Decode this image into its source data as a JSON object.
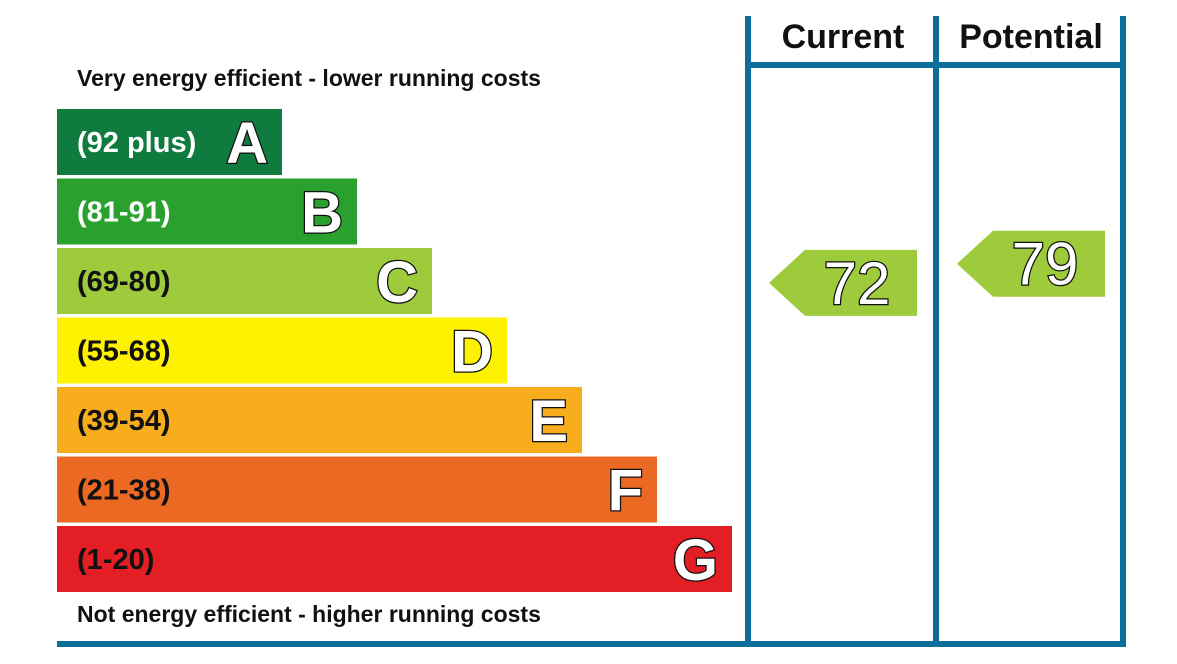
{
  "header": {
    "current_label": "Current",
    "potential_label": "Potential"
  },
  "captions": {
    "top": "Very energy efficient - lower running costs",
    "bottom": "Not energy efficient - higher running costs"
  },
  "colors": {
    "frame": "#0d6e99"
  },
  "chart_data": {
    "type": "bar",
    "bands": [
      {
        "letter": "A",
        "range": "(92 plus)",
        "color": "#0f7b3e",
        "text_color": "#ffffff"
      },
      {
        "letter": "B",
        "range": "(81-91)",
        "color": "#2aa12f",
        "text_color": "#ffffff"
      },
      {
        "letter": "C",
        "range": "(69-80)",
        "color": "#9dcb3c",
        "text_color": "#111111"
      },
      {
        "letter": "D",
        "range": "(55-68)",
        "color": "#fff200",
        "text_color": "#111111"
      },
      {
        "letter": "E",
        "range": "(39-54)",
        "color": "#f8ad1d",
        "text_color": "#111111"
      },
      {
        "letter": "F",
        "range": "(21-38)",
        "color": "#ec6924",
        "text_color": "#111111"
      },
      {
        "letter": "G",
        "range": "(1-20)",
        "color": "#e31e24",
        "text_color": "#111111"
      }
    ],
    "ratings": {
      "current": {
        "value": "72",
        "band": "C",
        "color": "#9dcb3c"
      },
      "potential": {
        "value": "79",
        "band": "C",
        "color": "#9dcb3c"
      }
    }
  }
}
